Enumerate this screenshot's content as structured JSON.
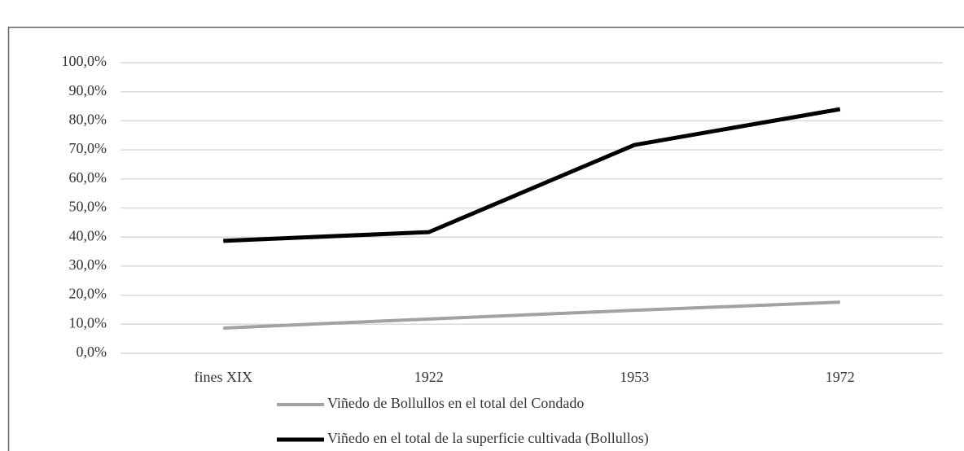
{
  "chart_data": {
    "type": "line",
    "categories": [
      "fines XIX",
      "1922",
      "1953",
      "1972"
    ],
    "series": [
      {
        "name": "Viñedo de Bollullos en el total del Condado",
        "color": "#a6a0a0",
        "values": [
          8.7,
          11.8,
          14.8,
          17.6
        ]
      },
      {
        "name": "Viñedo en el total de la superficie cultivada (Bollullos)",
        "color": "#000000",
        "values": [
          38.7,
          41.7,
          71.7,
          84.0
        ]
      }
    ],
    "ylim": [
      0,
      100
    ],
    "yticks": [
      {
        "value": 0,
        "label": "0,0%"
      },
      {
        "value": 10,
        "label": "10,0%"
      },
      {
        "value": 20,
        "label": "20,0%"
      },
      {
        "value": 30,
        "label": "30,0%"
      },
      {
        "value": 40,
        "label": "40,0%"
      },
      {
        "value": 50,
        "label": "50,0%"
      },
      {
        "value": 60,
        "label": "60,0%"
      },
      {
        "value": 70,
        "label": "70,0%"
      },
      {
        "value": 80,
        "label": "80,0%"
      },
      {
        "value": 90,
        "label": "90,0%"
      },
      {
        "value": 100,
        "label": "100,0%"
      }
    ],
    "grid": true,
    "legend": "bottom"
  }
}
